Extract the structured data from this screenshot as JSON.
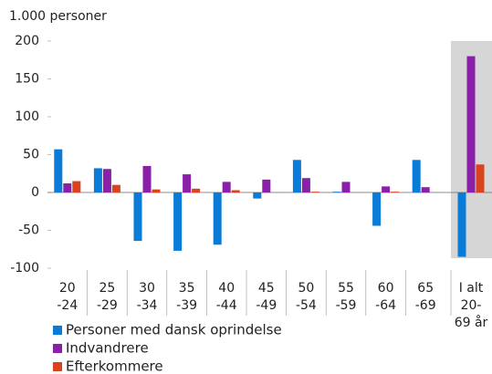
{
  "chart_data": {
    "type": "bar",
    "y_label": "1.000 personer",
    "categories": [
      [
        "20",
        "-24"
      ],
      [
        "25",
        "-29"
      ],
      [
        "30",
        "-34"
      ],
      [
        "35",
        "-39"
      ],
      [
        "40",
        "-44"
      ],
      [
        "45",
        "-49"
      ],
      [
        "50",
        "-54"
      ],
      [
        "55",
        "-59"
      ],
      [
        "60",
        "-64"
      ],
      [
        "65",
        "-69"
      ],
      [
        "I alt",
        "20-",
        "69 år"
      ]
    ],
    "series": [
      {
        "name": "Personer med dansk oprindelse",
        "color": "#0a7bd6",
        "values": [
          57,
          32,
          -64,
          -77,
          -69,
          -8,
          43,
          1,
          -44,
          43,
          -85
        ]
      },
      {
        "name": "Indvandrere",
        "color": "#8a1fa8",
        "values": [
          12,
          31,
          35,
          24,
          14,
          17,
          19,
          14,
          8,
          7,
          180
        ]
      },
      {
        "name": "Efterkommere",
        "color": "#d9441e",
        "values": [
          15,
          10,
          4,
          5,
          3,
          0,
          1,
          0,
          1,
          0,
          37
        ]
      }
    ],
    "ylim": [
      -100,
      200
    ],
    "yticks": [
      -100,
      -50,
      0,
      50,
      100,
      150,
      200
    ],
    "grid": false
  }
}
